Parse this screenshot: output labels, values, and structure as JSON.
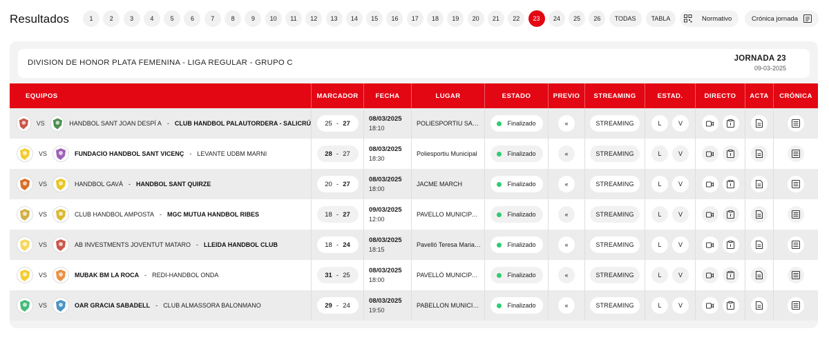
{
  "header": {
    "title": "Resultados",
    "jornadas": [
      "1",
      "2",
      "3",
      "4",
      "5",
      "6",
      "7",
      "8",
      "9",
      "10",
      "11",
      "12",
      "13",
      "14",
      "15",
      "16",
      "17",
      "18",
      "19",
      "20",
      "21",
      "22",
      "23",
      "24",
      "25",
      "26"
    ],
    "active_jornada": "23",
    "todas_label": "TODAS",
    "tabla_label": "TABLA",
    "normativo_label": "Normativo",
    "cronica_label": "Crónica jornada"
  },
  "competition": {
    "name": "DIVISION DE HONOR PLATA FEMENINA - LIGA REGULAR - GRUPO C",
    "jornada": "JORNADA 23",
    "date": "09-03-2025"
  },
  "table": {
    "headers": {
      "equipos": "EQUIPOS",
      "marcador": "MARCADOR",
      "fecha": "FECHA",
      "lugar": "LUGAR",
      "estado": "ESTADO",
      "previo": "PREVIO",
      "streaming": "STREAMING",
      "estad": "ESTAD.",
      "directo": "DIRECTO",
      "acta": "ACTA",
      "cronica": "CRÓNICA"
    },
    "vs_label": "VS",
    "streaming_label": "STREAMING",
    "estad_l": "L",
    "estad_v": "V",
    "previo_glyph": "«",
    "rows": [
      {
        "home": "HANDBOL SANT JOAN DESPÍ A",
        "away": "CLUB HANDBOL PALAUTORDERA - SALICRÚ",
        "home_score": "25",
        "away_score": "27",
        "winner": "away",
        "date": "08/03/2025",
        "time": "18:10",
        "place": "POLIESPORTIU SALVADOR GISPERT",
        "state": "Finalizado",
        "home_color": "#c0392b",
        "away_color": "#2e7d32"
      },
      {
        "home": "FUNDACIO HANDBOL SANT VICENÇ",
        "away": "LEVANTE UDBM MARNI",
        "home_score": "28",
        "away_score": "27",
        "winner": "home",
        "date": "08/03/2025",
        "time": "18:30",
        "place": "Poliesportiu Municipal",
        "state": "Finalizado",
        "home_color": "#f1c40f",
        "away_color": "#8e44ad"
      },
      {
        "home": "HANDBOL GAVÀ",
        "away": "HANDBOL SANT QUIRZE",
        "home_score": "20",
        "away_score": "27",
        "winner": "away",
        "date": "08/03/2025",
        "time": "18:00",
        "place": "JACME MARCH",
        "state": "Finalizado",
        "home_color": "#d35400",
        "away_color": "#e6b800"
      },
      {
        "home": "CLUB HANDBOL AMPOSTA",
        "away": "MGC MUTUA HANDBOL RIBES",
        "home_score": "18",
        "away_score": "27",
        "winner": "away",
        "date": "09/03/2025",
        "time": "12:00",
        "place": "PAVELLO MUNICIPAL D'AMPOSTA",
        "state": "Finalizado",
        "home_color": "#c9a227",
        "away_color": "#d4ac0d"
      },
      {
        "home": "AB INVESTMENTS JOVENTUT MATARO",
        "away": "LLEIDA HANDBOL CLUB",
        "home_score": "18",
        "away_score": "24",
        "winner": "away",
        "date": "08/03/2025",
        "time": "18:15",
        "place": "Pavelló Teresa Maria Roca",
        "state": "Finalizado",
        "home_color": "#f4d03f",
        "away_color": "#c0392b"
      },
      {
        "home": "MUBAK BM LA ROCA",
        "away": "REDI-HANDBOL ONDA",
        "home_score": "31",
        "away_score": "25",
        "winner": "home",
        "date": "08/03/2025",
        "time": "18:00",
        "place": "PAVELLÓ MUNICIPAL LA ROCA",
        "state": "Finalizado",
        "home_color": "#f1c40f",
        "away_color": "#e67e22"
      },
      {
        "home": "OAR GRACIA SABADELL",
        "away": "CLUB ALMASSORA BALONMANO",
        "home_score": "29",
        "away_score": "24",
        "winner": "home",
        "date": "08/03/2025",
        "time": "19:50",
        "place": "PABELLON MUNICIPAL",
        "state": "Finalizado",
        "home_color": "#27ae60",
        "away_color": "#2980b9"
      }
    ]
  }
}
